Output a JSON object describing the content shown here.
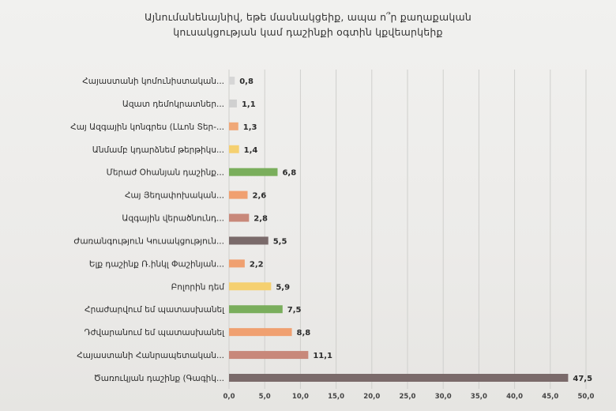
{
  "chart_data": {
    "type": "bar",
    "orientation": "horizontal",
    "title_lines": [
      "Այնումանենայնիվ, եթե մասնակցեիք, ապա ո՞ր քաղաքական",
      "կուսակցության կամ դաշինքի օգտին կքվեարկեիք"
    ],
    "categories": [
      "Հայաստանի կոմունիստական...",
      "Ազատ դեմոկրատներ...",
      "Հայ Ազգային կոնգրես (Լևոն Տեր-...",
      "Անմամբ կդարձնեմ թերթիկս...",
      "Մերաժ Օհանյան դաշինք...",
      "Հայ Յեղափոխական...",
      "Ազգային վերածնունդ...",
      "Ժառանգություն Կուսակցություն...",
      "Ելք դաշինք Ռ.ինկլ Փաշինյան...",
      "Բոլորին դեմ",
      "Հրաժարվում եմ պատասխանել",
      "Դժվարանում եմ պատասխանել",
      "Հայաստանի Հանրապետական...",
      "Ծառուկյան դաշինք (Գագիկ..."
    ],
    "values": [
      0.8,
      1.1,
      1.3,
      1.4,
      6.8,
      2.6,
      2.8,
      5.5,
      2.2,
      5.9,
      7.5,
      8.8,
      11.1,
      47.5
    ],
    "value_labels": [
      "0,8",
      "1,1",
      "1,3",
      "1,4",
      "6,8",
      "2,6",
      "2,8",
      "5,5",
      "2,2",
      "5,9",
      "7,5",
      "8,8",
      "11,1",
      "47,5"
    ],
    "colors": [
      "#d6d6d6",
      "#d0d0d0",
      "#f0a878",
      "#f5d070",
      "#7aae5c",
      "#f0a070",
      "#c8887a",
      "#7a6a6a",
      "#f0a070",
      "#f5d070",
      "#7aae5c",
      "#f0a070",
      "#c8887a",
      "#7a6a6a"
    ],
    "x_ticks": [
      "0,0",
      "5,0",
      "10,0",
      "15,0",
      "20,0",
      "25,0",
      "30,0",
      "35,0",
      "40,0",
      "45,0",
      "50,0"
    ],
    "xlim": [
      0,
      50
    ],
    "grid": true,
    "xlabel": "",
    "ylabel": ""
  }
}
